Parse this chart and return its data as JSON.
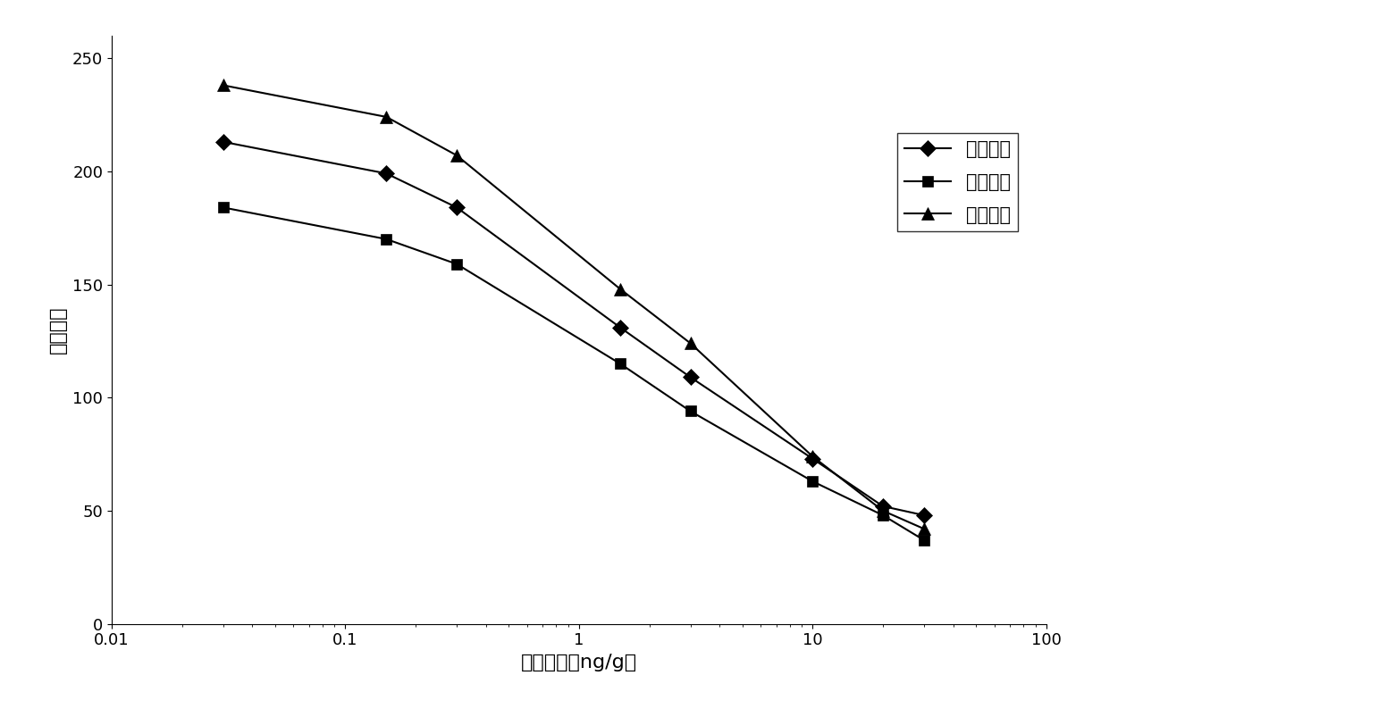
{
  "series": [
    {
      "label": "地塞米松",
      "marker": "D",
      "x": [
        0.03,
        0.15,
        0.3,
        1.5,
        3,
        10,
        20,
        30
      ],
      "y": [
        213,
        199,
        184,
        131,
        109,
        73,
        52,
        48
      ]
    },
    {
      "label": "倍他米松",
      "marker": "s",
      "x": [
        0.03,
        0.15,
        0.3,
        1.5,
        3,
        10,
        20,
        30
      ],
      "y": [
        184,
        170,
        159,
        115,
        94,
        63,
        48,
        37
      ]
    },
    {
      "label": "双氟米松",
      "marker": "^",
      "x": [
        0.03,
        0.15,
        0.3,
        1.5,
        3,
        10,
        20,
        30
      ],
      "y": [
        238,
        224,
        207,
        148,
        124,
        74,
        50,
        42
      ]
    }
  ],
  "xlabel": "药物浓度（ng/g）",
  "ylabel": "荧光强度",
  "xlim": [
    0.01,
    100
  ],
  "ylim": [
    0,
    260
  ],
  "yticks": [
    0,
    50,
    100,
    150,
    200,
    250
  ],
  "color": "black",
  "linewidth": 1.5,
  "markersize": 9,
  "background_color": "#ffffff",
  "figure_width": 15.61,
  "figure_height": 7.94,
  "dpi": 100
}
